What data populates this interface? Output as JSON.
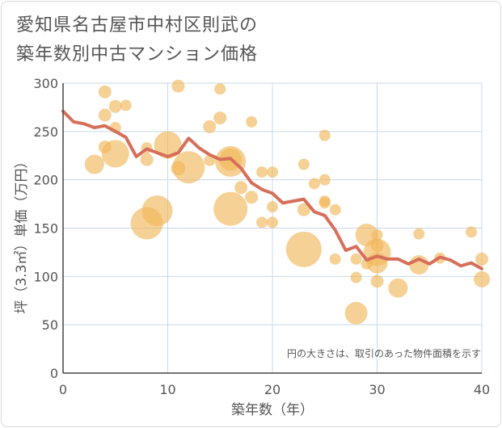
{
  "title_line1": "愛知県名古屋市中村区則武の",
  "title_line2": "築年数別中古マンション価格",
  "chart_data": {
    "type": "scatter",
    "xlabel": "築年数（年）",
    "ylabel": "坪（3.3㎡）単価（万円）",
    "xlim": [
      0,
      40
    ],
    "ylim": [
      0,
      300
    ],
    "xticks": [
      0,
      10,
      20,
      30,
      40
    ],
    "yticks": [
      0,
      50,
      100,
      150,
      200,
      250,
      300
    ],
    "grid": true,
    "note": "円の大きさは、取引のあった物件面積を示す",
    "colors": {
      "bubble": "#f0b555",
      "line": "#d66f5a",
      "grid": "#c9d9e8",
      "axis": "#555555"
    },
    "bubbles": [
      {
        "x": 4,
        "y": 291,
        "s": 8
      },
      {
        "x": 11,
        "y": 297,
        "s": 8
      },
      {
        "x": 15,
        "y": 294,
        "s": 7
      },
      {
        "x": 4,
        "y": 267,
        "s": 8
      },
      {
        "x": 5,
        "y": 276,
        "s": 8
      },
      {
        "x": 6,
        "y": 277,
        "s": 7
      },
      {
        "x": 5,
        "y": 254,
        "s": 7
      },
      {
        "x": 15,
        "y": 264,
        "s": 8
      },
      {
        "x": 14,
        "y": 255,
        "s": 8
      },
      {
        "x": 18,
        "y": 260,
        "s": 7
      },
      {
        "x": 25,
        "y": 246,
        "s": 7
      },
      {
        "x": 4,
        "y": 234,
        "s": 8
      },
      {
        "x": 8,
        "y": 233,
        "s": 7
      },
      {
        "x": 5,
        "y": 227,
        "s": 17
      },
      {
        "x": 10,
        "y": 236,
        "s": 17
      },
      {
        "x": 3,
        "y": 216,
        "s": 12
      },
      {
        "x": 8,
        "y": 221,
        "s": 8
      },
      {
        "x": 11,
        "y": 212,
        "s": 9
      },
      {
        "x": 12,
        "y": 213,
        "s": 20
      },
      {
        "x": 14,
        "y": 220,
        "s": 7
      },
      {
        "x": 16,
        "y": 219,
        "s": 19
      },
      {
        "x": 16,
        "y": 221,
        "s": 14
      },
      {
        "x": 19,
        "y": 208,
        "s": 7
      },
      {
        "x": 20,
        "y": 208,
        "s": 7
      },
      {
        "x": 23,
        "y": 216,
        "s": 7
      },
      {
        "x": 24,
        "y": 196,
        "s": 7
      },
      {
        "x": 25,
        "y": 200,
        "s": 7
      },
      {
        "x": 17,
        "y": 192,
        "s": 8
      },
      {
        "x": 18,
        "y": 182,
        "s": 8
      },
      {
        "x": 25,
        "y": 178,
        "s": 7
      },
      {
        "x": 9,
        "y": 168,
        "s": 19
      },
      {
        "x": 16,
        "y": 170,
        "s": 21
      },
      {
        "x": 20,
        "y": 172,
        "s": 7
      },
      {
        "x": 23,
        "y": 169,
        "s": 8
      },
      {
        "x": 26,
        "y": 169,
        "s": 7
      },
      {
        "x": 8,
        "y": 155,
        "s": 20
      },
      {
        "x": 19,
        "y": 156,
        "s": 7
      },
      {
        "x": 20,
        "y": 156,
        "s": 7
      },
      {
        "x": 29,
        "y": 143,
        "s": 14
      },
      {
        "x": 30,
        "y": 143,
        "s": 7
      },
      {
        "x": 34,
        "y": 144,
        "s": 7
      },
      {
        "x": 39,
        "y": 146,
        "s": 7
      },
      {
        "x": 23,
        "y": 128,
        "s": 22
      },
      {
        "x": 30,
        "y": 125,
        "s": 17
      },
      {
        "x": 30,
        "y": 132,
        "s": 8
      },
      {
        "x": 28,
        "y": 118,
        "s": 7
      },
      {
        "x": 26,
        "y": 118,
        "s": 7
      },
      {
        "x": 29,
        "y": 113,
        "s": 7
      },
      {
        "x": 30,
        "y": 114,
        "s": 13
      },
      {
        "x": 34,
        "y": 112,
        "s": 12
      },
      {
        "x": 36,
        "y": 119,
        "s": 7
      },
      {
        "x": 40,
        "y": 118,
        "s": 8
      },
      {
        "x": 28,
        "y": 99,
        "s": 7
      },
      {
        "x": 30,
        "y": 95,
        "s": 8
      },
      {
        "x": 40,
        "y": 97,
        "s": 10
      },
      {
        "x": 32,
        "y": 88,
        "s": 12
      },
      {
        "x": 28,
        "y": 62,
        "s": 14
      },
      {
        "x": 25,
        "y": 176,
        "s": 7
      }
    ],
    "line": {
      "x": [
        0,
        1,
        2,
        3,
        4,
        5,
        6,
        7,
        8,
        9,
        10,
        11,
        12,
        13,
        14,
        15,
        16,
        17,
        18,
        19,
        20,
        21,
        22,
        23,
        24,
        25,
        26,
        27,
        28,
        29,
        30,
        31,
        32,
        33,
        34,
        35,
        36,
        37,
        38,
        39,
        40
      ],
      "y": [
        271,
        260,
        258,
        254,
        256,
        250,
        244,
        224,
        232,
        228,
        224,
        228,
        243,
        233,
        226,
        221,
        222,
        212,
        197,
        190,
        186,
        176,
        178,
        180,
        167,
        163,
        148,
        127,
        131,
        117,
        121,
        118,
        118,
        113,
        118,
        113,
        120,
        117,
        111,
        114,
        108
      ]
    }
  }
}
